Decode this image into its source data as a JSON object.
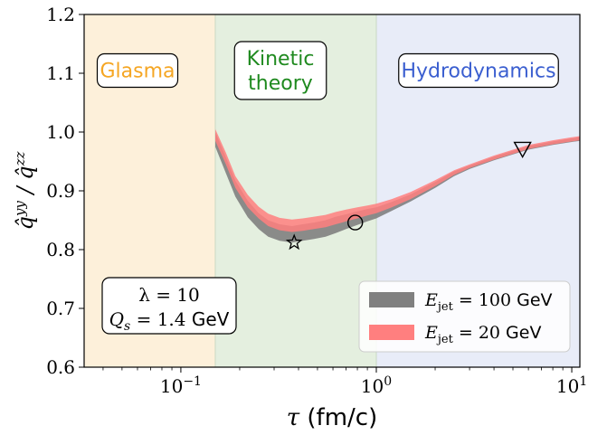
{
  "chart_data": {
    "type": "area",
    "title": "",
    "xlabel": "τ (fm/c)",
    "ylabel": "q̂^yy / q̂^zz",
    "xscale": "log",
    "xlim": [
      0.032,
      11.0
    ],
    "ylim": [
      0.6,
      1.2
    ],
    "x_ticks": [
      {
        "value": 0.1,
        "label": "10⁻¹"
      },
      {
        "value": 1,
        "label": "10⁰"
      },
      {
        "value": 10,
        "label": "10¹"
      }
    ],
    "y_ticks": [
      {
        "value": 0.6,
        "label": "0.6"
      },
      {
        "value": 0.7,
        "label": "0.7"
      },
      {
        "value": 0.8,
        "label": "0.8"
      },
      {
        "value": 0.9,
        "label": "0.9"
      },
      {
        "value": 1.0,
        "label": "1.0"
      },
      {
        "value": 1.1,
        "label": "1.1"
      },
      {
        "value": 1.2,
        "label": "1.2"
      }
    ],
    "regions": [
      {
        "label": "Glasma",
        "x_range": [
          0.032,
          0.15
        ],
        "color": "#fdf0da",
        "text_color": "#f5a623"
      },
      {
        "label": "Kinetic\ntheory",
        "x_range": [
          0.15,
          1.0
        ],
        "color": "#e4efdf",
        "text_color": "#1f8a1f"
      },
      {
        "label": "Hydrodynamics",
        "x_range": [
          1.0,
          11.0
        ],
        "color": "#e8ecf8",
        "text_color": "#3b5fd0"
      }
    ],
    "parameter_box": {
      "line1": "λ = 10",
      "line2": "Q_s = 1.4 GeV"
    },
    "series": [
      {
        "name": "E_jet = 100 GeV",
        "color": "#808080",
        "x": [
          0.15,
          0.17,
          0.19,
          0.22,
          0.25,
          0.28,
          0.32,
          0.37,
          0.42,
          0.48,
          0.55,
          0.62,
          0.7,
          0.8,
          0.9,
          1.0,
          1.2,
          1.5,
          2.0,
          2.5,
          3.0,
          4.0,
          5.0,
          6.0,
          8.0,
          10.0,
          11.0
        ],
        "lower": [
          0.975,
          0.93,
          0.89,
          0.855,
          0.835,
          0.822,
          0.815,
          0.812,
          0.815,
          0.818,
          0.822,
          0.828,
          0.835,
          0.842,
          0.848,
          0.853,
          0.866,
          0.882,
          0.905,
          0.925,
          0.937,
          0.952,
          0.962,
          0.97,
          0.978,
          0.983,
          0.985
        ],
        "upper": [
          1.0,
          0.957,
          0.917,
          0.883,
          0.862,
          0.85,
          0.843,
          0.84,
          0.843,
          0.846,
          0.85,
          0.856,
          0.86,
          0.865,
          0.869,
          0.872,
          0.881,
          0.894,
          0.915,
          0.933,
          0.943,
          0.958,
          0.968,
          0.976,
          0.984,
          0.989,
          0.991
        ]
      },
      {
        "name": "E_jet = 20 GeV",
        "color": "#ff7f7f",
        "x": [
          0.15,
          0.17,
          0.19,
          0.22,
          0.25,
          0.28,
          0.32,
          0.37,
          0.42,
          0.48,
          0.55,
          0.62,
          0.7,
          0.8,
          0.9,
          1.0,
          1.2,
          1.5,
          2.0,
          2.5,
          3.0,
          4.0,
          5.0,
          6.0,
          8.0,
          10.0,
          11.0
        ],
        "lower": [
          0.985,
          0.945,
          0.905,
          0.872,
          0.853,
          0.84,
          0.833,
          0.83,
          0.832,
          0.835,
          0.838,
          0.843,
          0.848,
          0.853,
          0.858,
          0.862,
          0.872,
          0.886,
          0.908,
          0.927,
          0.939,
          0.953,
          0.963,
          0.971,
          0.979,
          0.984,
          0.986
        ],
        "upper": [
          1.005,
          0.965,
          0.925,
          0.893,
          0.873,
          0.861,
          0.854,
          0.851,
          0.853,
          0.856,
          0.859,
          0.864,
          0.868,
          0.872,
          0.875,
          0.878,
          0.886,
          0.898,
          0.918,
          0.935,
          0.945,
          0.96,
          0.97,
          0.978,
          0.986,
          0.991,
          0.993
        ]
      }
    ],
    "markers": [
      {
        "shape": "star",
        "x": 0.38,
        "y": 0.812
      },
      {
        "shape": "circle",
        "x": 0.78,
        "y": 0.846
      },
      {
        "shape": "triangle-down",
        "x": 5.6,
        "y": 0.97
      }
    ],
    "legend_position": "lower-right",
    "grid": false
  }
}
